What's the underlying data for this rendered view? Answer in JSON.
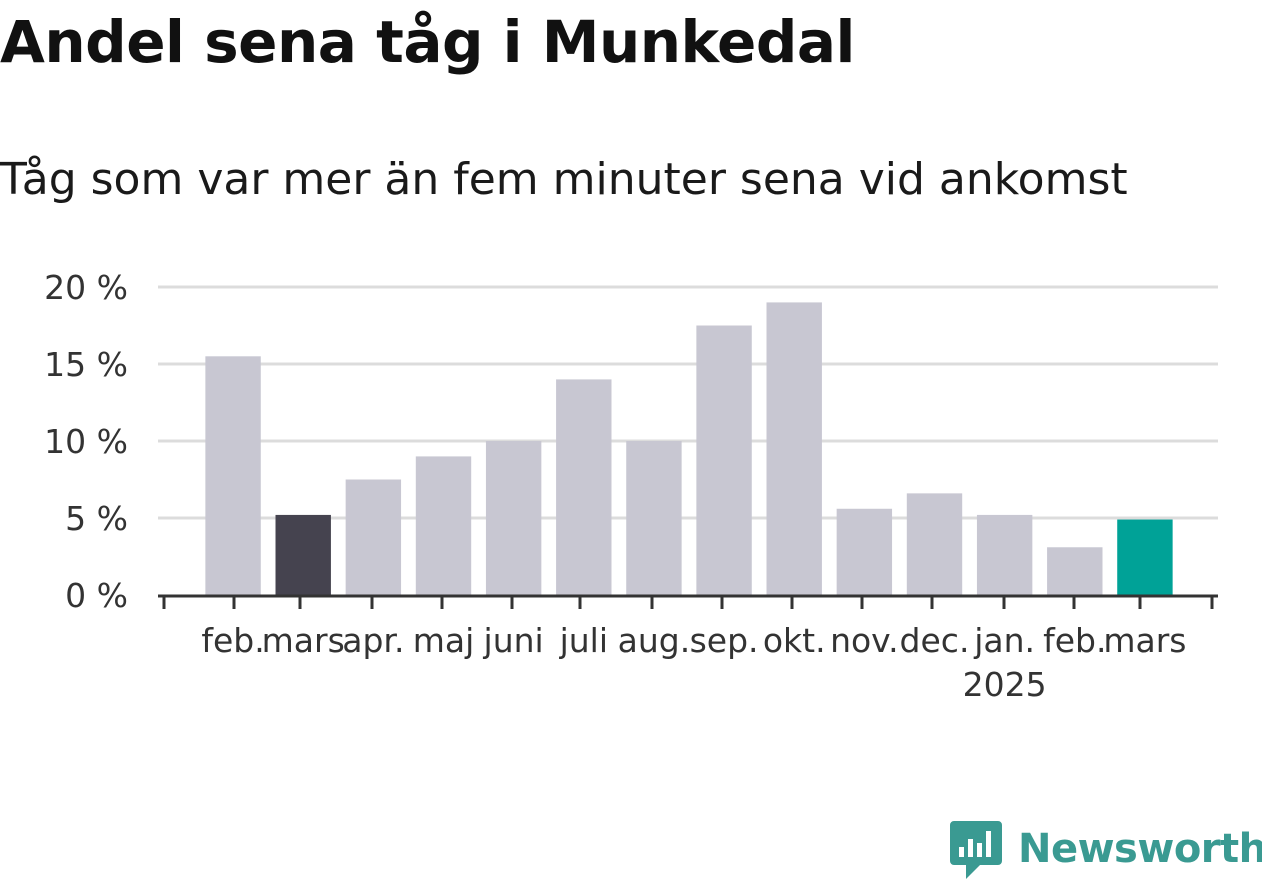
{
  "title": "Andel sena tåg i Munkedal",
  "subtitle": "Tåg som var mer än fem minuter sena vid ankomst",
  "logo": {
    "text": "Newsworthy",
    "icon": "newsworthy-logo-icon",
    "color": "#3a9a92"
  },
  "colors": {
    "default_bar": "#c8c7d2",
    "previous_year_bar": "#45434f",
    "current_bar": "#00a297",
    "grid": "#dcdcdc",
    "axis": "#333333"
  },
  "chart_data": {
    "type": "bar",
    "title": "Andel sena tåg i Munkedal",
    "subtitle": "Tåg som var mer än fem minuter sena vid ankomst",
    "xlabel": "",
    "ylabel": "",
    "categories": [
      "feb.",
      "mars",
      "apr.",
      "maj",
      "juni",
      "juli",
      "aug.",
      "sep.",
      "okt.",
      "nov.",
      "dec.",
      "jan.",
      "feb.",
      "mars"
    ],
    "year_labels": [
      {
        "index": 11,
        "text": "2025"
      }
    ],
    "values": [
      15.5,
      5.2,
      7.5,
      9.0,
      10.0,
      14.0,
      10.0,
      17.5,
      19.0,
      5.6,
      6.6,
      5.2,
      3.1,
      4.9
    ],
    "highlight": {
      "1": "previous_year_bar",
      "13": "current_bar"
    },
    "ylim": [
      0,
      20
    ],
    "yticks": [
      0,
      5,
      10,
      15,
      20
    ],
    "ytick_labels": [
      "0 %",
      "5 %",
      "10 %",
      "15 %",
      "20 %"
    ],
    "grid": true,
    "legend": "none"
  }
}
